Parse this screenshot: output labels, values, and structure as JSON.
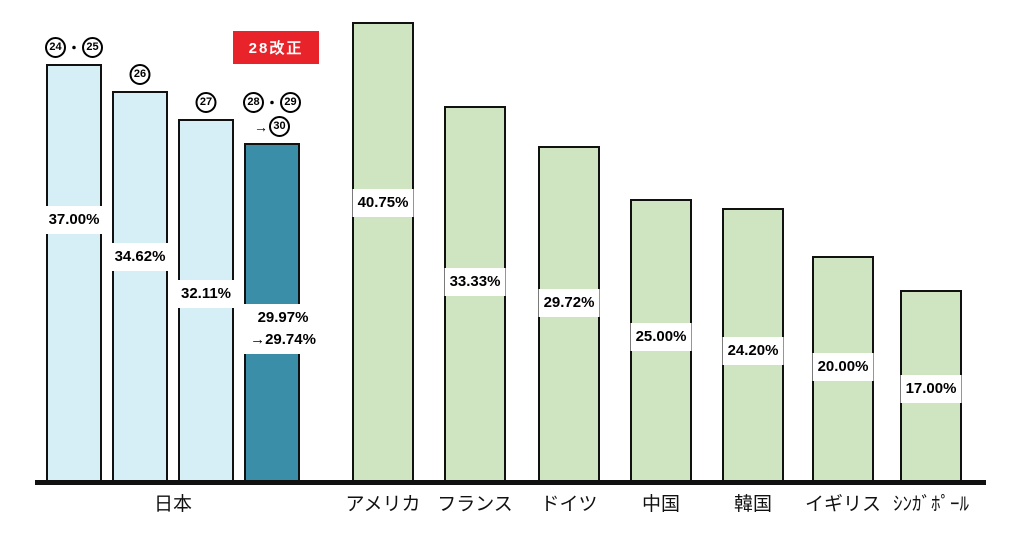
{
  "chart_data": {
    "type": "bar",
    "description_visible_text_only": true,
    "unit": "%",
    "ylim": [
      0,
      41
    ],
    "grid": false,
    "y_axis_shown": false,
    "badge": {
      "text": "28改正",
      "bg_color": "#e8232a",
      "text_color": "#ffffff"
    },
    "colors": {
      "lightblue": "#d6eef6",
      "teal": "#3a8ea8",
      "green": "#cfe5c2",
      "bar_border": "#111111",
      "axis": "#111111",
      "value_label_bg": "#ffffff",
      "value_label_text": "#000000"
    },
    "bars": [
      {
        "name": "japan-h24-25",
        "group": "日本",
        "year_label": "㉔・㉕",
        "year_tokens": [
          [
            "(24)",
            "・",
            "(25)"
          ]
        ],
        "value": 37.0,
        "value_label_lines": [
          "37.00%"
        ],
        "color": "lightblue"
      },
      {
        "name": "japan-h26",
        "group": "日本",
        "year_label": "㉖",
        "year_tokens": [
          [
            "(26)"
          ]
        ],
        "value": 34.62,
        "value_label_lines": [
          "34.62%"
        ],
        "color": "lightblue"
      },
      {
        "name": "japan-h27",
        "group": "日本",
        "year_label": "㉗",
        "year_tokens": [
          [
            "(27)"
          ]
        ],
        "value": 32.11,
        "value_label_lines": [
          "32.11%"
        ],
        "color": "lightblue"
      },
      {
        "name": "japan-h28-29-30",
        "group": "日本",
        "year_label": "㉘・㉙→㉚",
        "year_tokens": [
          [
            "(28)",
            "・",
            "(29)"
          ],
          [
            "→",
            "(30)"
          ]
        ],
        "value": 29.97,
        "value_after": 29.74,
        "value_label_lines": [
          "29.97%",
          "→29.74%"
        ],
        "color": "teal",
        "badge": "28改正"
      },
      {
        "name": "usa",
        "group": "アメリカ",
        "value": 40.75,
        "value_label_lines": [
          "40.75%"
        ],
        "color": "green"
      },
      {
        "name": "france",
        "group": "フランス",
        "value": 33.33,
        "value_label_lines": [
          "33.33%"
        ],
        "color": "green"
      },
      {
        "name": "germany",
        "group": "ドイツ",
        "value": 29.72,
        "value_label_lines": [
          "29.72%"
        ],
        "color": "green"
      },
      {
        "name": "china",
        "group": "中国",
        "value": 25.0,
        "value_label_lines": [
          "25.00%"
        ],
        "color": "green"
      },
      {
        "name": "korea",
        "group": "韓国",
        "value": 24.2,
        "value_label_lines": [
          "24.20%"
        ],
        "color": "green"
      },
      {
        "name": "uk",
        "group": "イギリス",
        "value": 20.0,
        "value_label_lines": [
          "20.00%"
        ],
        "color": "green"
      },
      {
        "name": "singapore",
        "group": "ｼﾝｶﾞﾎﾟｰﾙ",
        "value": 17.0,
        "value_label_lines": [
          "17.00%"
        ],
        "color": "green"
      }
    ],
    "x_axis_labels": [
      "日本",
      "アメリカ",
      "フランス",
      "ドイツ",
      "中国",
      "韓国",
      "イギリス",
      "ｼﾝｶﾞﾎﾟｰﾙ"
    ]
  }
}
